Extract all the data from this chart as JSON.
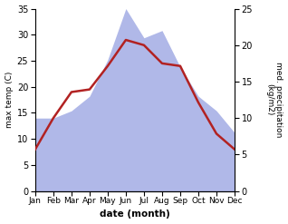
{
  "months": [
    "Jan",
    "Feb",
    "Mar",
    "Apr",
    "May",
    "Jun",
    "Jul",
    "Aug",
    "Sep",
    "Oct",
    "Nov",
    "Dec"
  ],
  "temp_max": [
    8.0,
    14.0,
    19.0,
    19.5,
    24.0,
    29.0,
    28.0,
    24.5,
    24.0,
    17.0,
    11.0,
    8.0
  ],
  "precip": [
    10.0,
    10.0,
    11.0,
    13.0,
    18.0,
    25.0,
    21.0,
    22.0,
    17.0,
    13.0,
    11.0,
    8.0
  ],
  "temp_color": "#b22222",
  "precip_fill_color": "#b0b8e8",
  "temp_ylim": [
    0,
    35
  ],
  "precip_ylim": [
    0,
    25
  ],
  "temp_yticks": [
    0,
    5,
    10,
    15,
    20,
    25,
    30,
    35
  ],
  "precip_yticks": [
    0,
    5,
    10,
    15,
    20,
    25
  ],
  "xlabel": "date (month)",
  "ylabel_left": "max temp (C)",
  "ylabel_right": "med. precipitation\n(kg/m2)",
  "bg_color": "#ffffff"
}
